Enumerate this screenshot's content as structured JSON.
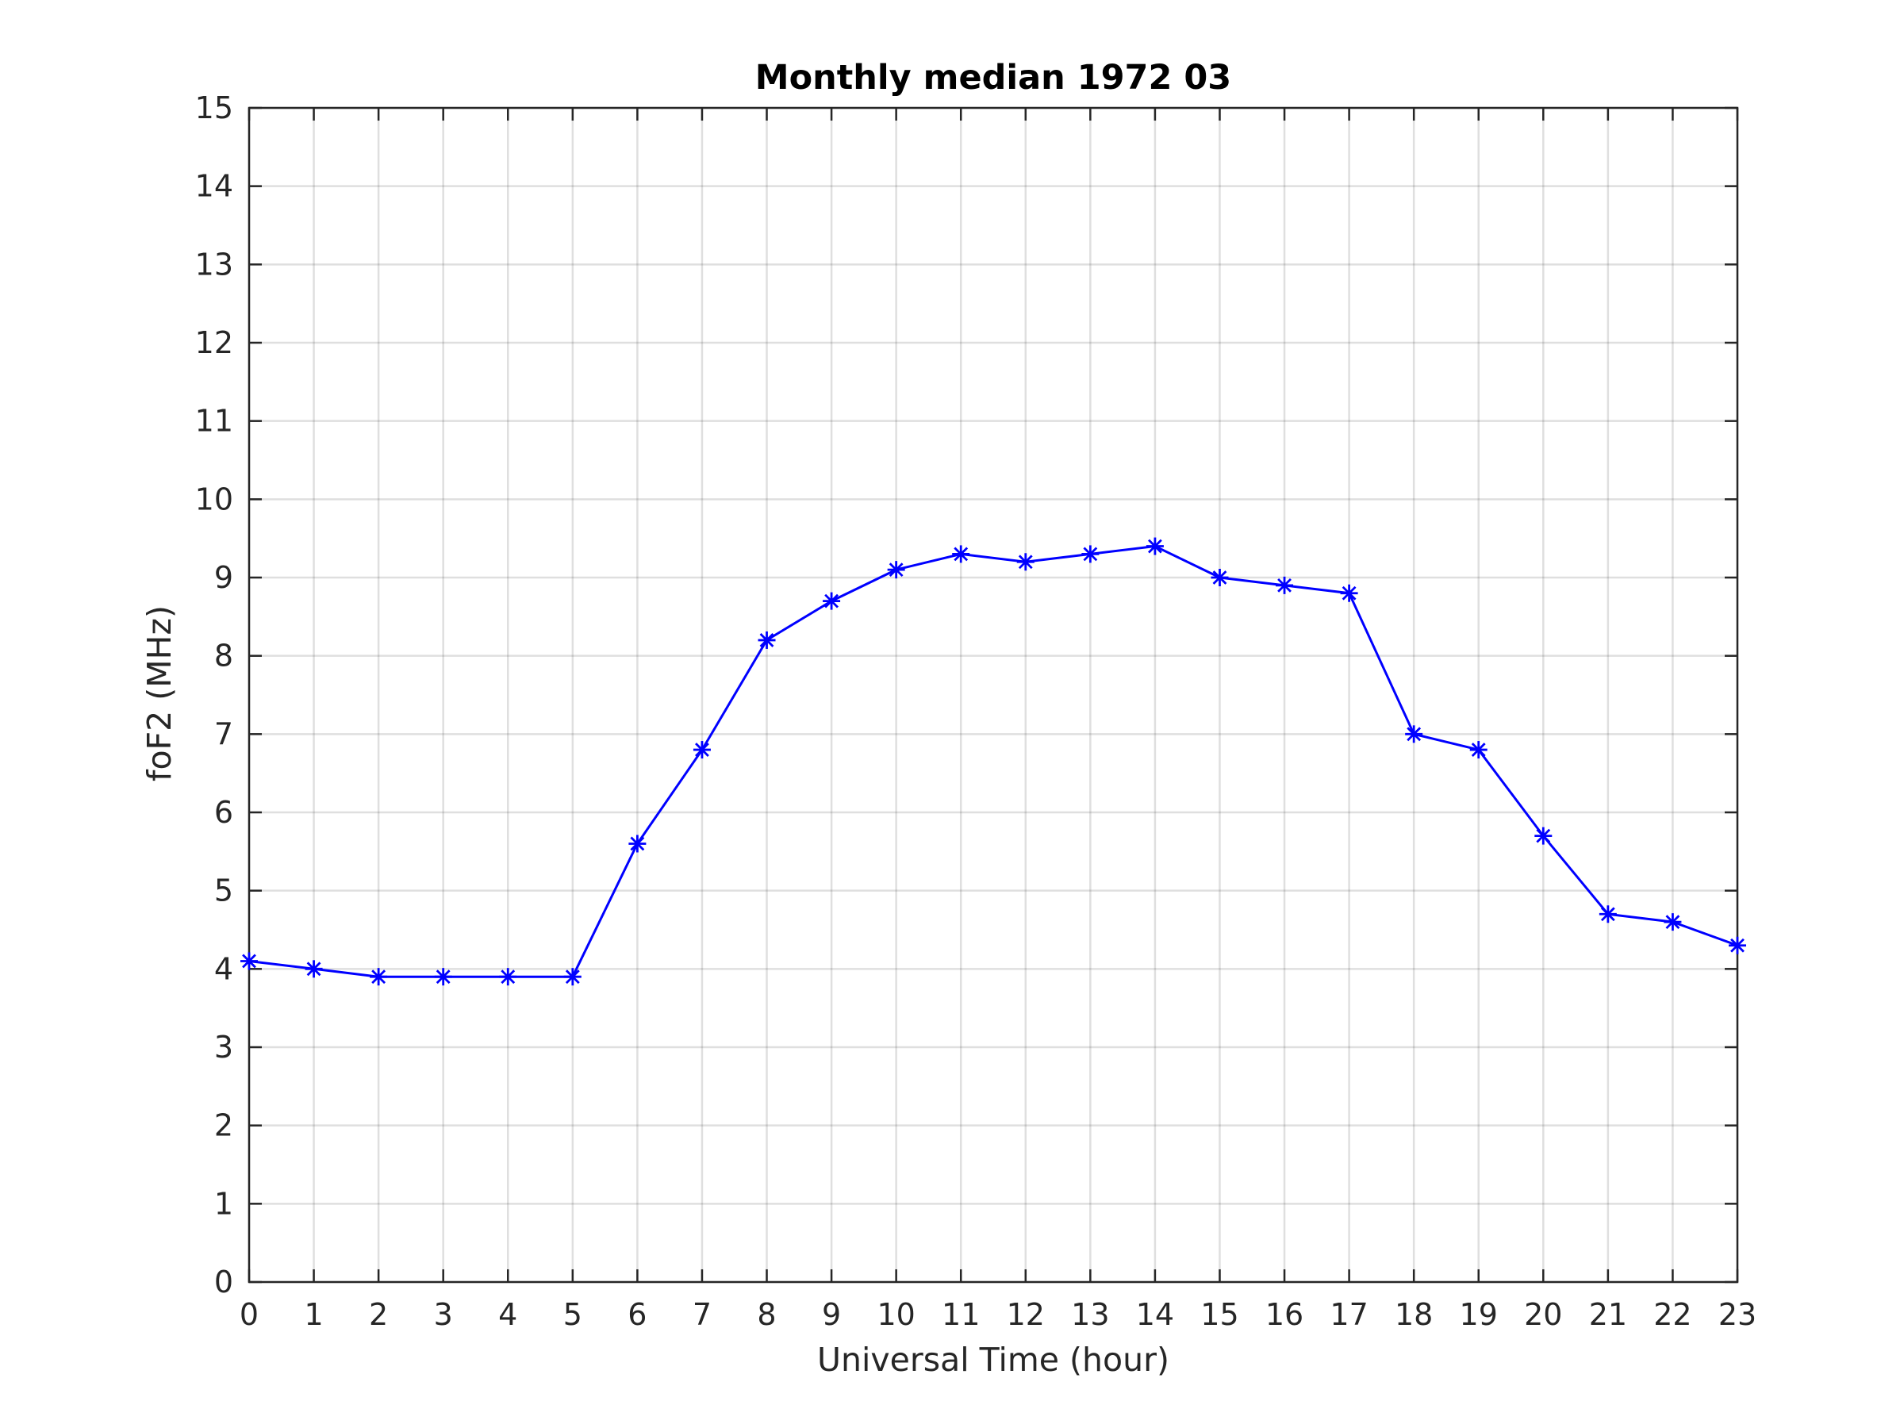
{
  "chart_data": {
    "type": "line",
    "title": "Monthly median 1972 03",
    "xlabel": "Universal Time (hour)",
    "ylabel": "foF2 (MHz)",
    "xlim": [
      0,
      23
    ],
    "ylim": [
      0,
      15
    ],
    "xticks": [
      0,
      1,
      2,
      3,
      4,
      5,
      6,
      7,
      8,
      9,
      10,
      11,
      12,
      13,
      14,
      15,
      16,
      17,
      18,
      19,
      20,
      21,
      22,
      23
    ],
    "yticks": [
      0,
      1,
      2,
      3,
      4,
      5,
      6,
      7,
      8,
      9,
      10,
      11,
      12,
      13,
      14,
      15
    ],
    "grid": true,
    "marker": "asterisk",
    "series_color": "#0000ff",
    "series": [
      {
        "x": [
          0,
          1,
          2,
          3,
          4,
          5,
          6,
          7,
          8,
          9,
          10,
          11,
          12,
          13,
          14,
          15,
          16,
          17,
          18,
          19,
          20,
          21,
          22,
          23
        ],
        "values": [
          4.1,
          4.0,
          3.9,
          3.9,
          3.9,
          3.9,
          5.6,
          6.8,
          8.2,
          8.7,
          9.1,
          9.3,
          9.2,
          9.3,
          9.4,
          9.0,
          8.9,
          8.8,
          7.0,
          6.8,
          5.7,
          4.7,
          4.6,
          4.3
        ]
      }
    ]
  }
}
